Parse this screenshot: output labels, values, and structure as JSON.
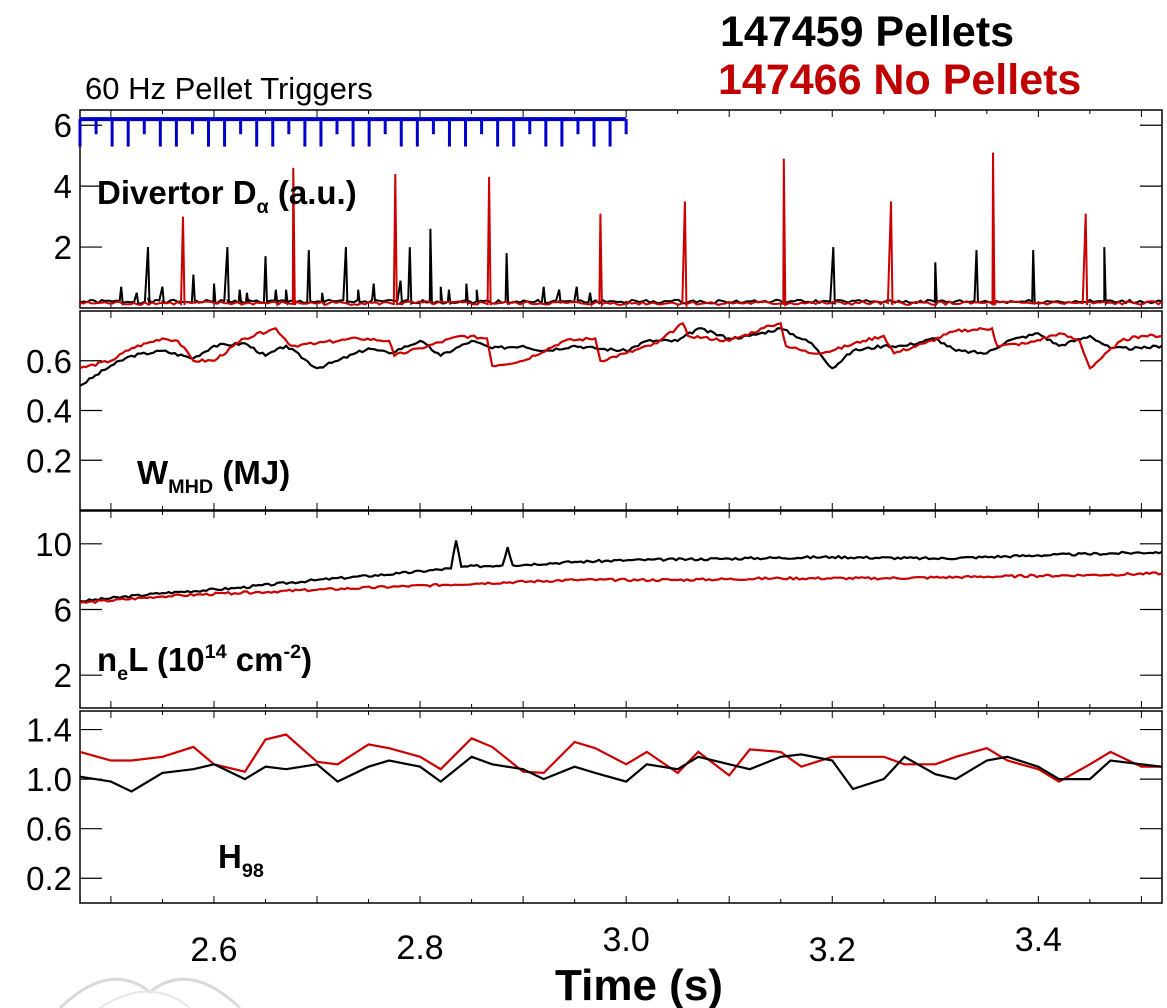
{
  "legend": {
    "shot_pellets": "147459 Pellets",
    "shot_no_pellets": "147466 No Pellets",
    "pellet_color": "#000000",
    "no_pellet_color": "#cc0000",
    "trigger_color": "#0000cc"
  },
  "chart_data": [
    {
      "type": "line",
      "panel": "divertor",
      "title": "",
      "annotation": "60 Hz Pellet Triggers",
      "ylabel_parts": [
        "Divertor D",
        "α",
        " (a.u.)"
      ],
      "xlim": [
        2.47,
        3.52
      ],
      "ylim": [
        0,
        6.5
      ],
      "yticks": [
        2,
        4,
        6
      ],
      "tick_labels": [
        "2",
        "4",
        "6"
      ],
      "trigger_window": [
        2.47,
        3.0
      ],
      "trigger_level": 6.2,
      "trigger_depth": 5.3,
      "series": [
        {
          "name": "147459 Pellets",
          "baseline": 0.15,
          "spikes": [
            [
              2.51,
              0.7
            ],
            [
              2.525,
              0.5
            ],
            [
              2.536,
              2.0
            ],
            [
              2.55,
              0.7
            ],
            [
              2.58,
              1.1
            ],
            [
              2.6,
              0.8
            ],
            [
              2.613,
              2.0
            ],
            [
              2.625,
              0.6
            ],
            [
              2.632,
              0.5
            ],
            [
              2.65,
              1.7
            ],
            [
              2.66,
              0.6
            ],
            [
              2.67,
              0.6
            ],
            [
              2.692,
              1.9
            ],
            [
              2.705,
              0.5
            ],
            [
              2.728,
              2.0
            ],
            [
              2.74,
              0.6
            ],
            [
              2.755,
              0.8
            ],
            [
              2.781,
              0.9
            ],
            [
              2.79,
              2.0
            ],
            [
              2.81,
              2.6
            ],
            [
              2.82,
              0.7
            ],
            [
              2.828,
              0.6
            ],
            [
              2.845,
              0.8
            ],
            [
              2.855,
              0.6
            ],
            [
              2.884,
              1.8
            ],
            [
              2.92,
              0.7
            ],
            [
              2.935,
              0.6
            ],
            [
              2.952,
              0.7
            ],
            [
              2.965,
              0.5
            ],
            [
              3.0,
              0.2
            ],
            [
              3.201,
              2.0
            ],
            [
              3.3,
              1.5
            ],
            [
              3.34,
              1.9
            ],
            [
              3.395,
              1.9
            ],
            [
              3.464,
              2.0
            ]
          ]
        },
        {
          "name": "147466 No Pellets",
          "baseline": 0.1,
          "spikes": [
            [
              2.57,
              3.0
            ],
            [
              2.677,
              4.6
            ],
            [
              2.776,
              4.4
            ],
            [
              2.867,
              4.3
            ],
            [
              2.975,
              3.1
            ],
            [
              3.057,
              3.5
            ],
            [
              3.153,
              4.9
            ],
            [
              3.257,
              3.5
            ],
            [
              3.356,
              5.1
            ],
            [
              3.446,
              3.1
            ]
          ]
        }
      ]
    },
    {
      "type": "line",
      "panel": "wmhd",
      "title": "",
      "ylabel_parts": [
        "W",
        "MHD",
        " (MJ)"
      ],
      "xlim": [
        2.47,
        3.52
      ],
      "ylim": [
        0,
        0.8
      ],
      "yticks": [
        0.2,
        0.4,
        0.6
      ],
      "tick_labels": [
        "0.2",
        "0.4",
        "0.6"
      ],
      "series": [
        {
          "name": "147459 Pellets",
          "x": [
            2.47,
            2.5,
            2.52,
            2.55,
            2.58,
            2.6,
            2.63,
            2.65,
            2.67,
            2.7,
            2.72,
            2.75,
            2.77,
            2.8,
            2.82,
            2.85,
            2.87,
            2.9,
            2.92,
            2.95,
            2.97,
            3.0,
            3.02,
            3.05,
            3.07,
            3.1,
            3.12,
            3.15,
            3.18,
            3.2,
            3.22,
            3.25,
            3.27,
            3.3,
            3.32,
            3.35,
            3.37,
            3.4,
            3.42,
            3.45,
            3.47,
            3.5,
            3.52
          ],
          "y": [
            0.5,
            0.58,
            0.62,
            0.64,
            0.61,
            0.66,
            0.67,
            0.62,
            0.66,
            0.57,
            0.6,
            0.65,
            0.63,
            0.68,
            0.62,
            0.68,
            0.65,
            0.66,
            0.64,
            0.66,
            0.65,
            0.64,
            0.68,
            0.68,
            0.73,
            0.69,
            0.7,
            0.73,
            0.67,
            0.57,
            0.64,
            0.66,
            0.66,
            0.69,
            0.64,
            0.63,
            0.68,
            0.71,
            0.66,
            0.7,
            0.65,
            0.65,
            0.66
          ]
        },
        {
          "name": "147466 No Pellets",
          "x": [
            2.47,
            2.5,
            2.52,
            2.55,
            2.565,
            2.58,
            2.6,
            2.63,
            2.66,
            2.675,
            2.7,
            2.74,
            2.77,
            2.775,
            2.8,
            2.84,
            2.865,
            2.87,
            2.9,
            2.94,
            2.97,
            2.975,
            3.0,
            3.03,
            3.055,
            3.06,
            3.1,
            3.14,
            3.15,
            3.155,
            3.18,
            3.2,
            3.23,
            3.25,
            3.26,
            3.29,
            3.32,
            3.355,
            3.36,
            3.39,
            3.42,
            3.44,
            3.45,
            3.48,
            3.5,
            3.52
          ],
          "y": [
            0.57,
            0.6,
            0.65,
            0.69,
            0.68,
            0.6,
            0.6,
            0.69,
            0.73,
            0.66,
            0.67,
            0.69,
            0.68,
            0.62,
            0.65,
            0.7,
            0.69,
            0.58,
            0.6,
            0.68,
            0.69,
            0.6,
            0.63,
            0.67,
            0.75,
            0.7,
            0.68,
            0.74,
            0.75,
            0.66,
            0.63,
            0.64,
            0.68,
            0.7,
            0.63,
            0.67,
            0.72,
            0.73,
            0.66,
            0.67,
            0.71,
            0.68,
            0.57,
            0.68,
            0.7,
            0.7
          ]
        }
      ]
    },
    {
      "type": "line",
      "panel": "density",
      "title": "",
      "ylabel_parts": [
        "n",
        "e",
        "L (10",
        "14",
        " cm",
        "-2",
        ")"
      ],
      "xlim": [
        2.47,
        3.52
      ],
      "ylim": [
        0,
        12
      ],
      "yticks": [
        2,
        6,
        10
      ],
      "tick_labels": [
        "2",
        "6",
        "10"
      ],
      "series": [
        {
          "name": "147459 Pellets",
          "x": [
            2.47,
            2.55,
            2.62,
            2.7,
            2.78,
            2.83,
            2.835,
            2.84,
            2.88,
            2.885,
            2.89,
            2.95,
            3.0,
            3.1,
            3.2,
            3.3,
            3.4,
            3.52
          ],
          "y": [
            6.5,
            7.0,
            7.3,
            7.8,
            8.2,
            8.5,
            10.2,
            8.6,
            8.7,
            9.8,
            8.7,
            8.9,
            9.0,
            9.1,
            9.2,
            9.1,
            9.3,
            9.5
          ]
        },
        {
          "name": "147466 No Pellets",
          "x": [
            2.47,
            2.55,
            2.62,
            2.7,
            2.78,
            2.86,
            2.95,
            3.05,
            3.15,
            3.25,
            3.35,
            3.45,
            3.52
          ],
          "y": [
            6.4,
            6.8,
            7.0,
            7.2,
            7.4,
            7.6,
            7.8,
            7.8,
            7.9,
            7.9,
            8.0,
            8.1,
            8.2
          ]
        }
      ]
    },
    {
      "type": "line",
      "panel": "h98",
      "title": "",
      "ylabel_parts": [
        "H",
        "98"
      ],
      "xlim": [
        2.47,
        3.52
      ],
      "ylim": [
        0.0,
        1.55
      ],
      "yticks": [
        0.2,
        0.6,
        1.0,
        1.4
      ],
      "tick_labels": [
        "0.2",
        "0.6",
        "1.0",
        "1.4"
      ],
      "xlabel": "Time (s)",
      "xticks": [
        2.6,
        2.8,
        3.0,
        3.2,
        3.4
      ],
      "xtick_labels": [
        "2.6",
        "2.8",
        "3.0",
        "3.2",
        "3.4"
      ],
      "series": [
        {
          "name": "147459 Pellets",
          "x": [
            2.47,
            2.5,
            2.52,
            2.55,
            2.58,
            2.6,
            2.63,
            2.65,
            2.67,
            2.7,
            2.72,
            2.75,
            2.77,
            2.8,
            2.82,
            2.85,
            2.87,
            2.9,
            2.92,
            2.95,
            2.97,
            3.0,
            3.02,
            3.05,
            3.07,
            3.1,
            3.12,
            3.15,
            3.17,
            3.2,
            3.22,
            3.25,
            3.27,
            3.3,
            3.32,
            3.35,
            3.37,
            3.4,
            3.42,
            3.45,
            3.47,
            3.5,
            3.52
          ],
          "y": [
            1.02,
            0.98,
            0.9,
            1.05,
            1.08,
            1.12,
            1.0,
            1.1,
            1.08,
            1.12,
            0.98,
            1.1,
            1.15,
            1.1,
            0.98,
            1.18,
            1.12,
            1.08,
            1.0,
            1.1,
            1.05,
            0.98,
            1.12,
            1.08,
            1.18,
            1.12,
            1.08,
            1.18,
            1.2,
            1.15,
            0.92,
            1.0,
            1.18,
            1.04,
            1.0,
            1.15,
            1.18,
            1.1,
            1.0,
            1.0,
            1.15,
            1.12,
            1.1
          ]
        },
        {
          "name": "147466 No Pellets",
          "x": [
            2.47,
            2.5,
            2.52,
            2.55,
            2.58,
            2.6,
            2.63,
            2.65,
            2.67,
            2.7,
            2.72,
            2.75,
            2.77,
            2.8,
            2.82,
            2.85,
            2.87,
            2.9,
            2.92,
            2.95,
            2.97,
            3.0,
            3.02,
            3.05,
            3.07,
            3.1,
            3.12,
            3.15,
            3.17,
            3.2,
            3.22,
            3.25,
            3.27,
            3.3,
            3.32,
            3.35,
            3.37,
            3.4,
            3.42,
            3.45,
            3.47,
            3.5,
            3.52
          ],
          "y": [
            1.22,
            1.15,
            1.15,
            1.18,
            1.26,
            1.12,
            1.06,
            1.32,
            1.36,
            1.14,
            1.12,
            1.28,
            1.25,
            1.18,
            1.08,
            1.33,
            1.26,
            1.06,
            1.05,
            1.3,
            1.25,
            1.12,
            1.22,
            1.05,
            1.22,
            1.03,
            1.24,
            1.22,
            1.1,
            1.18,
            1.18,
            1.18,
            1.12,
            1.12,
            1.18,
            1.25,
            1.15,
            1.08,
            0.98,
            1.12,
            1.22,
            1.1,
            1.1
          ]
        }
      ]
    }
  ]
}
